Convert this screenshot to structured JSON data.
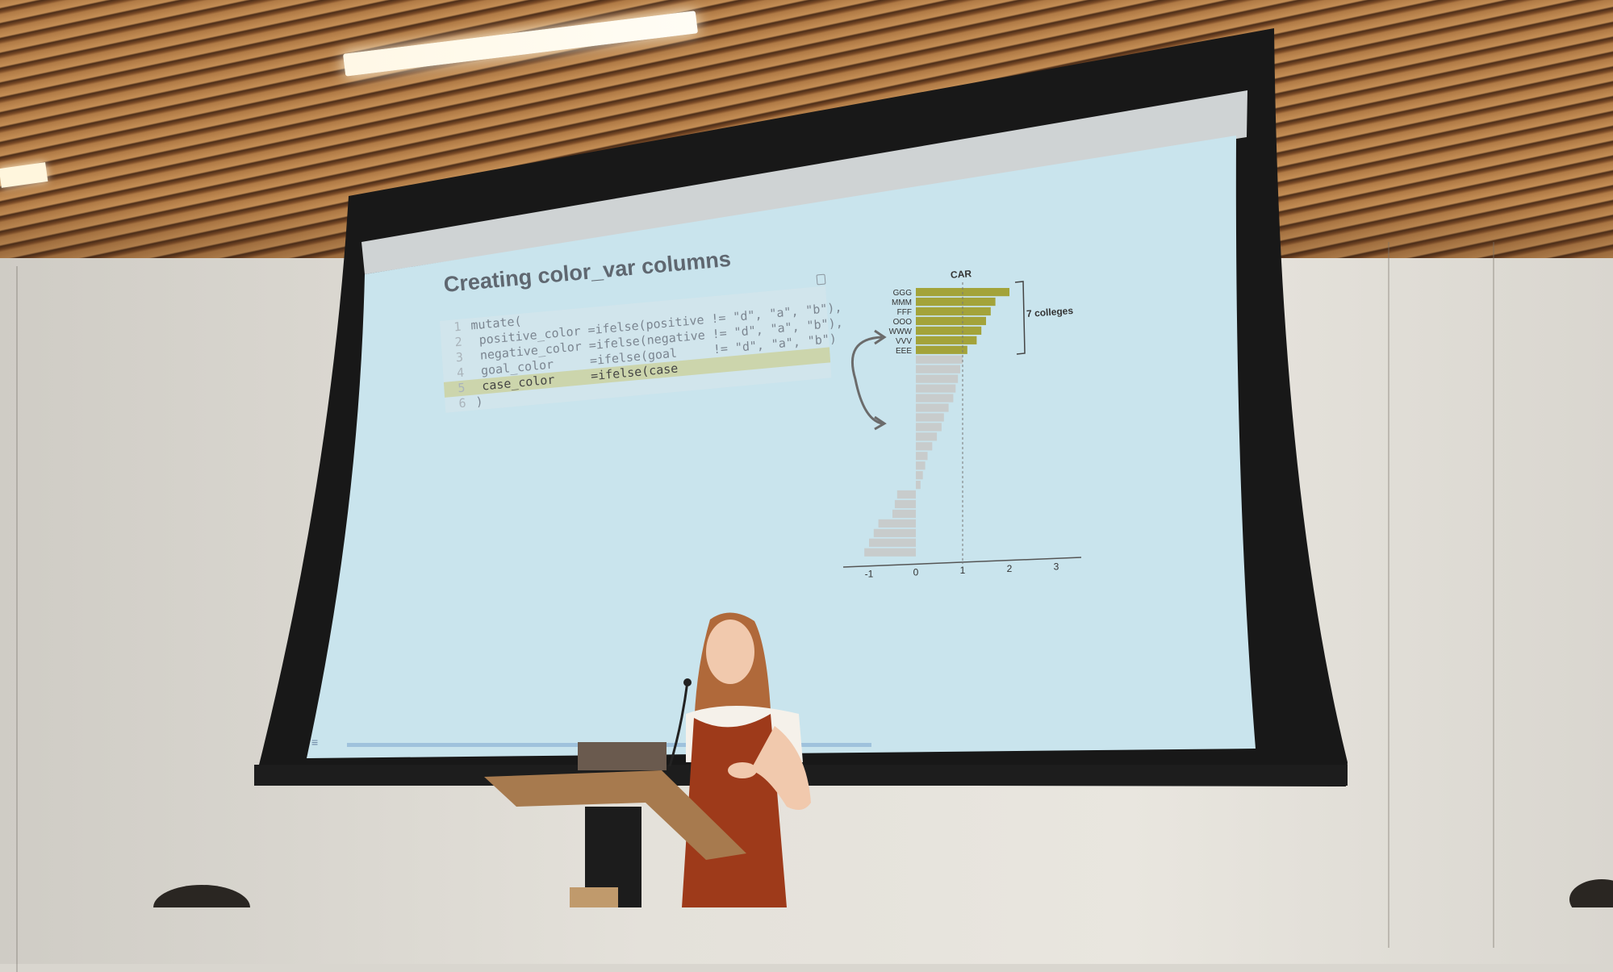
{
  "slide": {
    "title": "Creating color_var columns",
    "code_lines": [
      {
        "num": "1",
        "text": "mutate("
      },
      {
        "num": "2",
        "text": " positive_color =ifelse(positive != \"d\", \"a\", \"b\"),"
      },
      {
        "num": "3",
        "text": " negative_color =ifelse(negative != \"d\", \"a\", \"b\"),"
      },
      {
        "num": "4",
        "text": " goal_color     =ifelse(goal     != \"d\", \"a\", \"b\")"
      },
      {
        "num": "5",
        "text": " case_color     =ifelse(case"
      },
      {
        "num": "6",
        "text": ")"
      }
    ],
    "highlight_line": 5,
    "menu_icon": "≡"
  },
  "chart_data": {
    "type": "bar",
    "orientation": "horizontal",
    "title": "CAR",
    "bracket_label": "7 colleges",
    "highlight_color": "#a3a33a",
    "muted_color": "#c8cccc",
    "highlighted_categories": [
      "GGG",
      "MMM",
      "FFF",
      "OOO",
      "WWW",
      "VVV",
      "EEE"
    ],
    "xtick_labels": [
      "-1",
      "0",
      "1",
      "2",
      "3"
    ],
    "values": [
      2.0,
      1.7,
      1.6,
      1.5,
      1.4,
      1.3,
      1.1,
      1.0,
      0.95,
      0.9,
      0.85,
      0.8,
      0.7,
      0.6,
      0.55,
      0.45,
      0.35,
      0.25,
      0.2,
      0.15,
      0.1,
      -0.4,
      -0.45,
      -0.5,
      -0.8,
      -0.9,
      -1.0,
      -1.1
    ],
    "xlim": [
      -1.5,
      3.5
    ],
    "reference_line": 1
  },
  "colors": {
    "screen": "#c8e3ec",
    "screen_frame": "#1a1a1a",
    "wall": "#e4e1da",
    "ceiling": "#b07a45",
    "podium": "#a77a4e",
    "dress": "#9e3a1a",
    "hair": "#b06a3a"
  }
}
